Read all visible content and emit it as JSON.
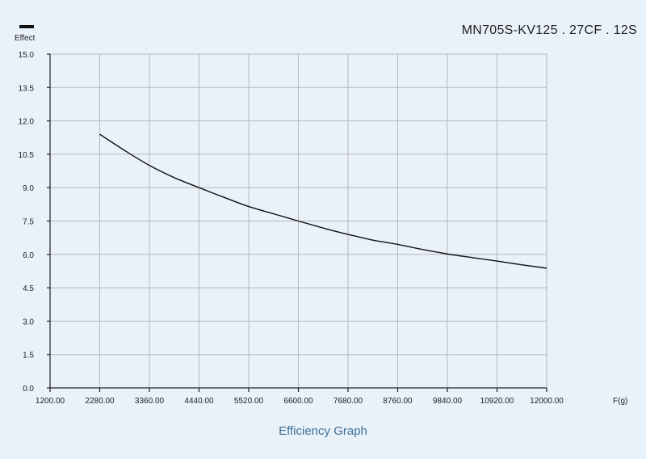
{
  "chart_data": {
    "type": "line",
    "title": "MN705S-KV125 . 27CF . 12S",
    "caption": "Efficiency Graph",
    "ylabel": "Effect",
    "xlabel": "F(g)",
    "xlim": [
      1200,
      12000
    ],
    "ylim": [
      0,
      15
    ],
    "x_ticks": [
      1200,
      2280,
      3360,
      4440,
      5520,
      6600,
      7680,
      8760,
      9840,
      10920,
      12000
    ],
    "x_tick_labels": [
      "1200.00",
      "2280.00",
      "3360.00",
      "4440.00",
      "5520.00",
      "6600.00",
      "7680.00",
      "8760.00",
      "9840.00",
      "10920.00",
      "12000.00"
    ],
    "y_ticks": [
      0,
      1.5,
      3,
      4.5,
      6,
      7.5,
      9,
      10.5,
      12,
      13.5,
      15
    ],
    "y_tick_labels": [
      "0.0",
      "1.5",
      "3.0",
      "4.5",
      "6.0",
      "7.5",
      "9.0",
      "10.5",
      "12.0",
      "13.5",
      "15.0"
    ],
    "grid": true,
    "series": [
      {
        "x": [
          2280,
          2800,
          3360,
          3900,
          4440,
          5000,
          5520,
          6100,
          6600,
          7200,
          7680,
          8200,
          8760,
          9300,
          9840,
          10400,
          10920,
          11500,
          12000
        ],
        "values": [
          11.4,
          10.7,
          10.0,
          9.45,
          9.0,
          8.55,
          8.15,
          7.8,
          7.5,
          7.15,
          6.9,
          6.65,
          6.45,
          6.22,
          6.02,
          5.85,
          5.7,
          5.52,
          5.38
        ]
      }
    ]
  }
}
